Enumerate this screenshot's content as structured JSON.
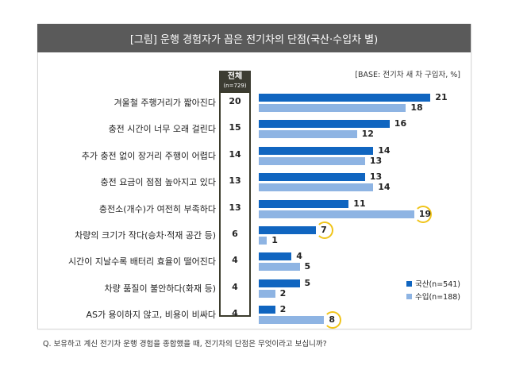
{
  "title": "[그림] 운행 경험자가 꼽은 전기차의 단점(국산·수입차 별)",
  "base_note": "[BASE: 전기차 새 차 구입자, %]",
  "question": "Q. 보유하고 계신 전기차 운행 경험을 종합했을 때, 전기차의 단점은 무엇이라고 보십니까?",
  "total_header": {
    "label": "전체",
    "n": "(n=729)"
  },
  "colors": {
    "domestic": "#1065c0",
    "import": "#8eb4e3",
    "highlight": "#f0c419"
  },
  "chart_data": {
    "type": "bar",
    "orientation": "horizontal",
    "categories": [
      "겨울철 주행거리가 짧아진다",
      "충전 시간이 너무 오래 걸린다",
      "추가 충전 없이 장거리 주행이 어렵다",
      "충전 요금이 점점 높아지고 있다",
      "충전소(개수)가 여전히 부족하다",
      "차량의 크기가 작다(승차·적재 공간 등)",
      "시간이 지날수록 배터리 효율이 떨어진다",
      "차량 품질이 불안하다(화재 등)",
      "AS가 용이하지 않고, 비용이 비싸다"
    ],
    "total": [
      20,
      15,
      14,
      13,
      13,
      6,
      4,
      4,
      4
    ],
    "series": [
      {
        "name": "국산(n=541)",
        "values": [
          21,
          16,
          14,
          13,
          11,
          7,
          4,
          5,
          2
        ]
      },
      {
        "name": "수입(n=188)",
        "values": [
          18,
          12,
          13,
          14,
          19,
          1,
          5,
          2,
          8
        ]
      }
    ],
    "highlighted": [
      {
        "series": 0,
        "index": 5
      },
      {
        "series": 1,
        "index": 4
      },
      {
        "series": 1,
        "index": 8
      }
    ],
    "xlim": [
      0,
      22
    ],
    "grid": false,
    "legend_position": "bottom-right"
  }
}
